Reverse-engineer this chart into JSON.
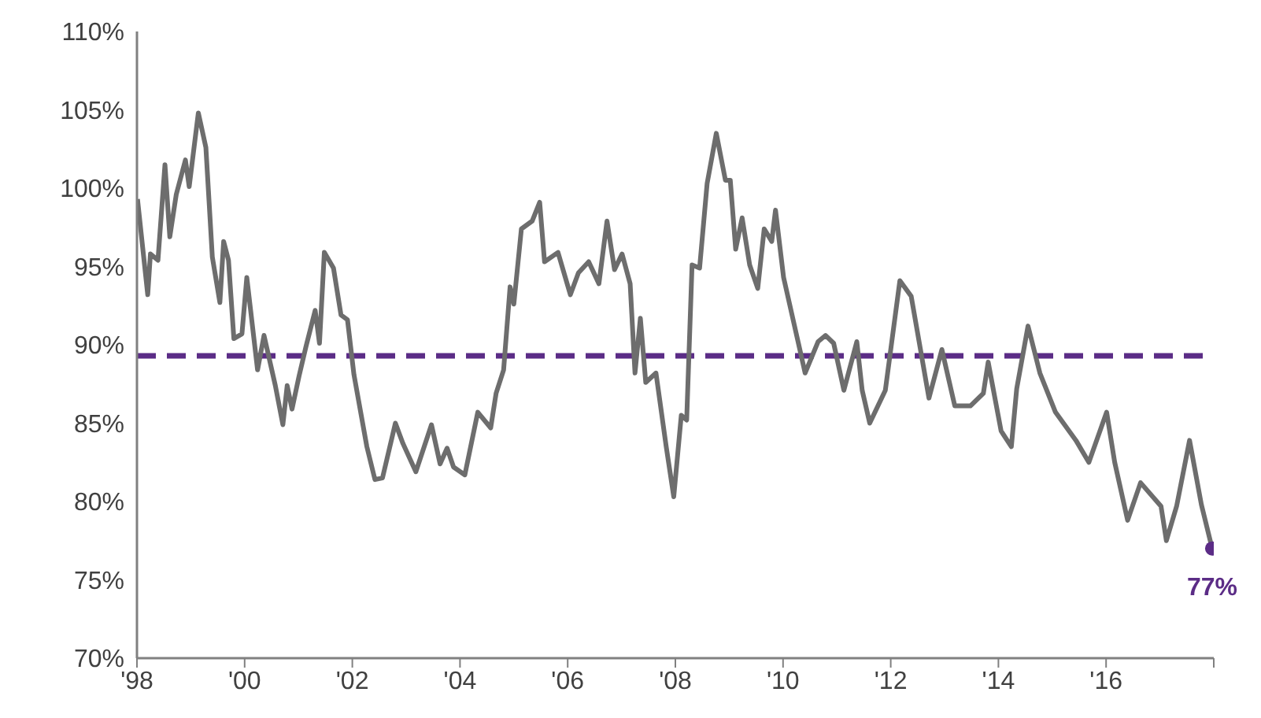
{
  "chart_data": {
    "type": "line",
    "xlim": [
      1998,
      2018
    ],
    "ylim": [
      70,
      110
    ],
    "xticks": [
      {
        "value": 1998,
        "label": "'98"
      },
      {
        "value": 2000,
        "label": "'00"
      },
      {
        "value": 2002,
        "label": "'02"
      },
      {
        "value": 2004,
        "label": "'04"
      },
      {
        "value": 2006,
        "label": "'06"
      },
      {
        "value": 2008,
        "label": "'08"
      },
      {
        "value": 2010,
        "label": "'10"
      },
      {
        "value": 2012,
        "label": "'12"
      },
      {
        "value": 2014,
        "label": "'14"
      },
      {
        "value": 2016,
        "label": "'16"
      },
      {
        "value": 2018,
        "label": null
      }
    ],
    "yticks": [
      {
        "value": 70,
        "label": "70%"
      },
      {
        "value": 75,
        "label": "75%"
      },
      {
        "value": 80,
        "label": "80%"
      },
      {
        "value": 85,
        "label": "85%"
      },
      {
        "value": 90,
        "label": "90%"
      },
      {
        "value": 95,
        "label": "95%"
      },
      {
        "value": 100,
        "label": "100%"
      },
      {
        "value": 105,
        "label": "105%"
      },
      {
        "value": 110,
        "label": "110%"
      }
    ],
    "grid": false,
    "legend": false,
    "marker": "none",
    "line_style": "solid",
    "series": [
      {
        "color": "#6d6d6d",
        "x": [
          1998.01,
          1998.2,
          1998.25,
          1998.39,
          1998.52,
          1998.61,
          1998.73,
          1998.9,
          1998.97,
          1999.14,
          1999.28,
          1999.4,
          1999.54,
          1999.61,
          1999.7,
          1999.8,
          1999.95,
          2000.04,
          2000.24,
          2000.36,
          2000.57,
          2000.71,
          2000.79,
          2000.88,
          2001.01,
          2001.14,
          2001.31,
          2001.39,
          2001.48,
          2001.65,
          2001.79,
          2001.91,
          2002.03,
          2002.27,
          2002.42,
          2002.56,
          2002.8,
          2002.94,
          2003.18,
          2003.47,
          2003.63,
          2003.76,
          2003.88,
          2004.09,
          2004.33,
          2004.57,
          2004.67,
          2004.81,
          2004.93,
          2005.0,
          2005.14,
          2005.34,
          2005.48,
          2005.57,
          2005.82,
          2006.05,
          2006.2,
          2006.39,
          2006.58,
          2006.73,
          2006.87,
          2007.01,
          2007.16,
          2007.25,
          2007.35,
          2007.45,
          2007.64,
          2007.83,
          2007.97,
          2008.11,
          2008.21,
          2008.31,
          2008.45,
          2008.59,
          2008.76,
          2008.93,
          2009.02,
          2009.12,
          2009.24,
          2009.38,
          2009.53,
          2009.65,
          2009.79,
          2009.86,
          2010.01,
          2010.41,
          2010.65,
          2010.79,
          2010.94,
          2011.13,
          2011.37,
          2011.47,
          2011.61,
          2011.9,
          2012.17,
          2012.38,
          2012.71,
          2012.95,
          2013.19,
          2013.48,
          2013.72,
          2013.81,
          2014.05,
          2014.24,
          2014.34,
          2014.55,
          2014.77,
          2015.06,
          2015.44,
          2015.68,
          2016.01,
          2016.16,
          2016.4,
          2016.64,
          2017.02,
          2017.12,
          2017.31,
          2017.55,
          2017.77,
          2017.97
        ],
        "values": [
          99.3,
          93.2,
          95.8,
          95.4,
          101.5,
          96.9,
          99.6,
          101.8,
          100.1,
          104.8,
          102.6,
          95.6,
          92.7,
          96.6,
          95.4,
          90.4,
          90.7,
          94.3,
          88.4,
          90.6,
          87.4,
          84.9,
          87.4,
          85.9,
          88.0,
          89.9,
          92.2,
          90.1,
          95.9,
          94.9,
          91.9,
          91.6,
          88.1,
          83.5,
          81.4,
          81.5,
          85.0,
          83.7,
          81.9,
          84.9,
          82.4,
          83.4,
          82.2,
          81.7,
          85.7,
          84.7,
          86.9,
          88.4,
          93.7,
          92.6,
          97.4,
          97.9,
          99.1,
          95.3,
          95.9,
          93.2,
          94.6,
          95.3,
          93.9,
          97.9,
          94.8,
          95.8,
          93.9,
          88.2,
          91.7,
          87.6,
          88.2,
          83.5,
          80.3,
          85.5,
          85.2,
          95.1,
          94.9,
          100.3,
          103.5,
          100.5,
          100.5,
          96.1,
          98.1,
          95.1,
          93.6,
          97.4,
          96.6,
          98.6,
          94.3,
          88.2,
          90.2,
          90.6,
          90.1,
          87.1,
          90.2,
          87.1,
          85.0,
          87.1,
          94.1,
          93.1,
          86.6,
          89.7,
          86.1,
          86.1,
          86.9,
          88.9,
          84.5,
          83.5,
          87.2,
          91.2,
          88.2,
          85.7,
          83.9,
          82.5,
          85.7,
          82.5,
          78.8,
          81.2,
          79.7,
          77.5,
          79.7,
          83.9,
          79.8,
          77
        ]
      },
      {
        "type": "scatter",
        "color": "#5b2c86",
        "marker": "circle",
        "x": [
          2017.97
        ],
        "values": [
          77
        ],
        "value_labels": [
          "77%"
        ]
      }
    ],
    "ref_lines": [
      {
        "axis": "y",
        "value": 89.3,
        "color": "#5b2c86",
        "line_style": "dashed"
      }
    ]
  }
}
